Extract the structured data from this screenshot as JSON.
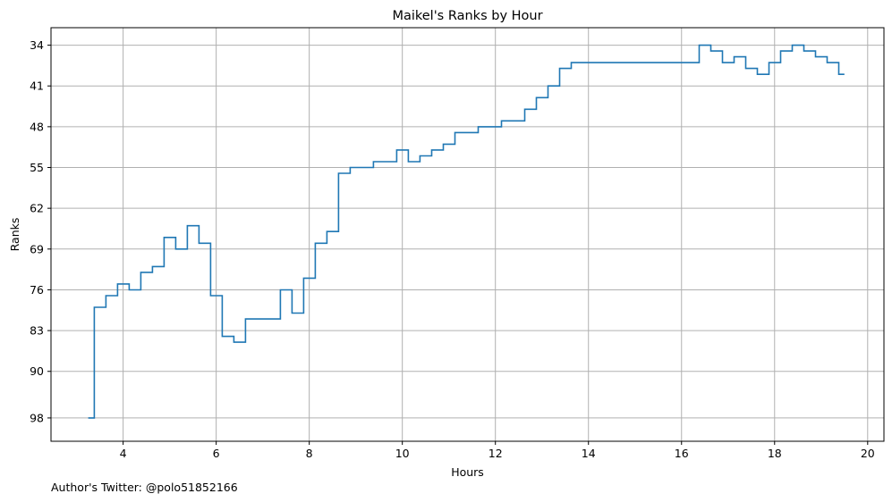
{
  "chart_data": {
    "type": "line",
    "style": "step",
    "title": "Maikel's Ranks by Hour",
    "xlabel": "Hours",
    "ylabel": "Ranks",
    "xlim": [
      2.45,
      20.35
    ],
    "ylim": [
      102,
      31
    ],
    "y_inverted": true,
    "grid": true,
    "line_color": "#1f77b4",
    "grid_color": "#b0b0b0",
    "xticks": [
      4,
      6,
      8,
      10,
      12,
      14,
      16,
      18,
      20
    ],
    "yticks": [
      34,
      41,
      48,
      55,
      62,
      69,
      76,
      83,
      90,
      98
    ],
    "x": [
      3.25,
      3.38,
      3.63,
      3.88,
      4.13,
      4.38,
      4.63,
      4.88,
      5.13,
      5.38,
      5.63,
      5.88,
      6.13,
      6.38,
      6.63,
      7.13,
      7.38,
      7.63,
      7.88,
      8.13,
      8.38,
      8.63,
      8.88,
      9.38,
      9.88,
      10.13,
      10.38,
      10.63,
      10.88,
      11.13,
      11.63,
      11.88,
      12.13,
      12.63,
      12.88,
      13.13,
      13.38,
      13.63,
      16.38,
      16.63,
      16.88,
      17.13,
      17.38,
      17.63,
      17.88,
      18.13,
      18.38,
      18.63,
      18.88,
      19.13,
      19.38,
      19.5
    ],
    "y": [
      98,
      79,
      77,
      75,
      76,
      73,
      72,
      67,
      69,
      65,
      68,
      77,
      84,
      85,
      81,
      81,
      76,
      80,
      74,
      68,
      66,
      56,
      55,
      54,
      52,
      54,
      53,
      52,
      51,
      49,
      48,
      48,
      47,
      45,
      43,
      41,
      38,
      37,
      34,
      35,
      37,
      36,
      38,
      39,
      37,
      35,
      34,
      35,
      36,
      37,
      39,
      39
    ]
  },
  "footer_text": "Author's Twitter: @polo51852166"
}
